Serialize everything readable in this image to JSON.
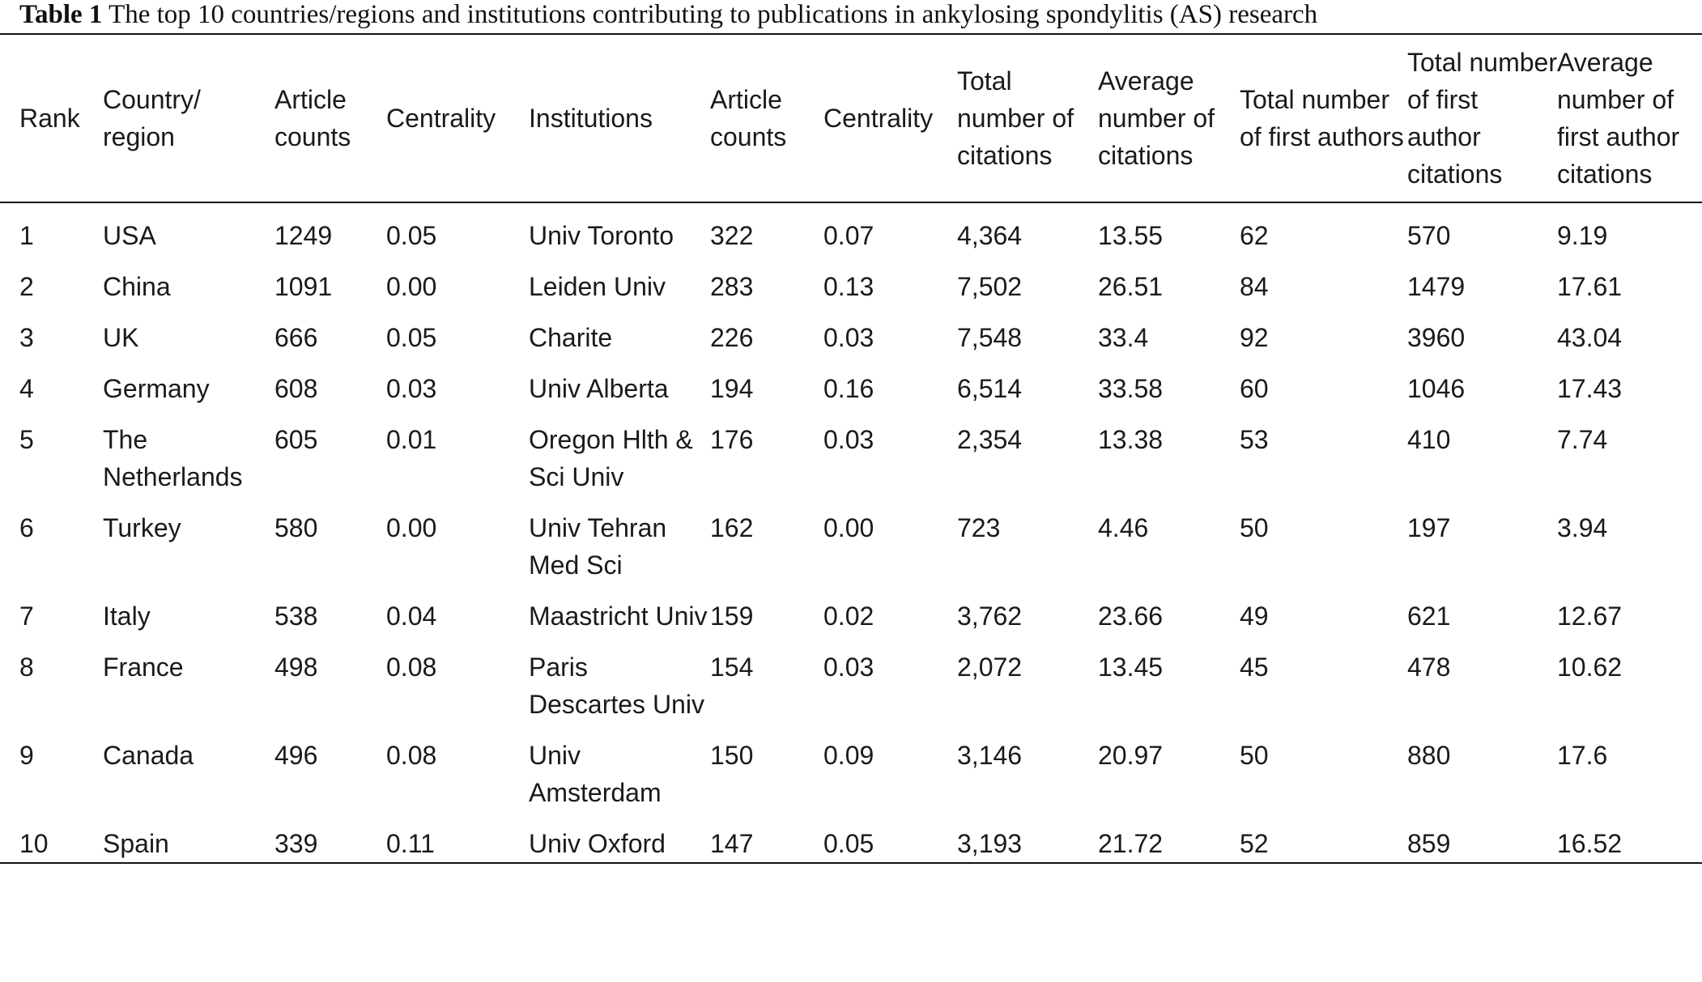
{
  "caption": {
    "label": "Table 1",
    "text": "The top 10 countries/regions and institutions contributing to publications in ankylosing spondylitis (AS) research"
  },
  "headers": [
    "Rank",
    "Country/ region",
    "Article counts",
    "Centrality",
    "Institutions",
    "Article counts",
    "Centrality",
    "Total number of citations",
    "Average number of citations",
    "Total number of first authors",
    "Total number of first author citations",
    "Average number of first author citations"
  ],
  "rows": [
    [
      "1",
      "USA",
      "1249",
      "0.05",
      "Univ Toronto",
      "322",
      "0.07",
      "4,364",
      "13.55",
      "62",
      "570",
      "9.19"
    ],
    [
      "2",
      "China",
      "1091",
      "0.00",
      "Leiden Univ",
      "283",
      "0.13",
      "7,502",
      "26.51",
      "84",
      "1479",
      "17.61"
    ],
    [
      "3",
      "UK",
      "666",
      "0.05",
      "Charite",
      "226",
      "0.03",
      "7,548",
      "33.4",
      "92",
      "3960",
      "43.04"
    ],
    [
      "4",
      "Germany",
      "608",
      "0.03",
      "Univ Alberta",
      "194",
      "0.16",
      "6,514",
      "33.58",
      "60",
      "1046",
      "17.43"
    ],
    [
      "5",
      "The Netherlands",
      "605",
      "0.01",
      "Oregon Hlth & Sci Univ",
      "176",
      "0.03",
      "2,354",
      "13.38",
      "53",
      "410",
      "7.74"
    ],
    [
      "6",
      "Turkey",
      "580",
      "0.00",
      "Univ Tehran Med Sci",
      "162",
      "0.00",
      "723",
      "4.46",
      "50",
      "197",
      "3.94"
    ],
    [
      "7",
      "Italy",
      "538",
      "0.04",
      "Maastricht Univ",
      "159",
      "0.02",
      "3,762",
      "23.66",
      "49",
      "621",
      "12.67"
    ],
    [
      "8",
      "France",
      "498",
      "0.08",
      "Paris Descartes Univ",
      "154",
      "0.03",
      "2,072",
      "13.45",
      "45",
      "478",
      "10.62"
    ],
    [
      "9",
      "Canada",
      "496",
      "0.08",
      "Univ Amsterdam",
      "150",
      "0.09",
      "3,146",
      "20.97",
      "50",
      "880",
      "17.6"
    ],
    [
      "10",
      "Spain",
      "339",
      "0.11",
      "Univ Oxford",
      "147",
      "0.05",
      "3,193",
      "21.72",
      "52",
      "859",
      "16.52"
    ]
  ]
}
